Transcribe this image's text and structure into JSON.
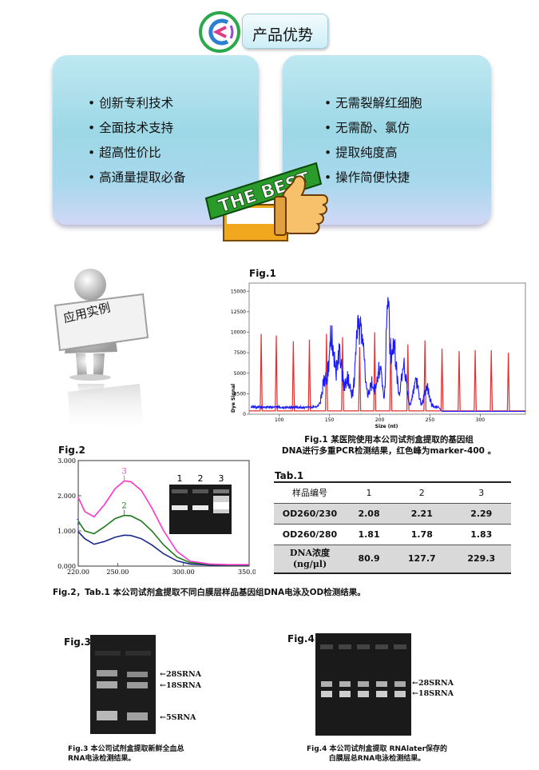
{
  "header": {
    "title": "产品优势"
  },
  "advantages": {
    "left": [
      "• 创新专利技术",
      "• 全面技术支持",
      "• 超高性价比",
      "• 高通量提取必备"
    ],
    "right": [
      "• 无需裂解红细胞",
      "• 无需酚、氯仿",
      "• 提取纯度高",
      "• 操作简便快捷"
    ]
  },
  "badge_text": "THE BEST",
  "section_sign": "应用实例",
  "fig1": {
    "title": "Fig.1",
    "caption_line1": "Fig.1 某医院使用本公司试剂盒提取的基因组",
    "caption_line2": "DNA进行多重PCR检测结果，红色峰为marker-400 。",
    "ylabel": "Dye Signal",
    "xlabel": "Size (nt)",
    "colors": {
      "sample": "#1a1aff",
      "marker": "#e03030"
    }
  },
  "chart_data": [
    {
      "type": "line",
      "title": "Fig.1",
      "xlabel": "Size (nt)",
      "ylabel": "Dye Signal",
      "xlim": [
        70,
        345
      ],
      "ylim": [
        0,
        16000
      ],
      "xticks": [
        100,
        150,
        200,
        250,
        300
      ],
      "yticks": [
        0,
        2500,
        5000,
        7500,
        10000,
        12500,
        15000
      ],
      "marker_peaks": [
        {
          "x": 82,
          "y": 9800
        },
        {
          "x": 97,
          "y": 9600
        },
        {
          "x": 114,
          "y": 8900
        },
        {
          "x": 130,
          "y": 9100
        },
        {
          "x": 147,
          "y": 9800
        },
        {
          "x": 163,
          "y": 9400
        },
        {
          "x": 180,
          "y": 8200
        },
        {
          "x": 195,
          "y": 10000
        },
        {
          "x": 211,
          "y": 9300
        },
        {
          "x": 228,
          "y": 8500
        },
        {
          "x": 245,
          "y": 9000
        },
        {
          "x": 262,
          "y": 8000
        },
        {
          "x": 279,
          "y": 7700
        },
        {
          "x": 295,
          "y": 7800
        },
        {
          "x": 311,
          "y": 7800
        },
        {
          "x": 328,
          "y": 7500
        }
      ],
      "sample_peaks": [
        {
          "x": 145,
          "y": 3400
        },
        {
          "x": 152,
          "y": 9100
        },
        {
          "x": 160,
          "y": 6900
        },
        {
          "x": 168,
          "y": 4000
        },
        {
          "x": 178,
          "y": 8700
        },
        {
          "x": 183,
          "y": 7300
        },
        {
          "x": 192,
          "y": 3200
        },
        {
          "x": 200,
          "y": 5200
        },
        {
          "x": 208,
          "y": 15300
        },
        {
          "x": 214,
          "y": 8600
        },
        {
          "x": 224,
          "y": 5800
        },
        {
          "x": 236,
          "y": 3600
        },
        {
          "x": 247,
          "y": 2800
        }
      ]
    },
    {
      "type": "line",
      "title": "Fig.2",
      "xlim": [
        220,
        350
      ],
      "ylim": [
        0,
        3
      ],
      "xticks": [
        220,
        250,
        300,
        350
      ],
      "xticklabels": [
        "220.00",
        "250.00",
        "300.00",
        "350.00"
      ],
      "yticks": [
        0,
        1,
        2,
        3
      ],
      "yticklabels": [
        "0.000",
        "1.000",
        "2.000",
        "3.000"
      ],
      "series": [
        {
          "name": "1",
          "color": "#1a2a8a",
          "x": [
            220,
            225,
            232,
            240,
            248,
            255,
            260,
            268,
            276,
            285,
            295,
            305,
            320,
            335,
            350
          ],
          "y": [
            0.98,
            0.78,
            0.62,
            0.7,
            0.82,
            0.88,
            0.87,
            0.78,
            0.6,
            0.35,
            0.15,
            0.06,
            0.03,
            0.02,
            0.02
          ]
        },
        {
          "name": "2",
          "color": "#1a7a1a",
          "x": [
            220,
            225,
            232,
            240,
            248,
            255,
            260,
            268,
            276,
            285,
            295,
            305,
            320,
            335,
            350
          ],
          "y": [
            1.28,
            1.0,
            0.92,
            1.12,
            1.35,
            1.44,
            1.43,
            1.28,
            1.0,
            0.6,
            0.26,
            0.1,
            0.05,
            0.03,
            0.03
          ]
        },
        {
          "name": "3",
          "color": "#ff33cc",
          "x": [
            220,
            225,
            232,
            240,
            248,
            255,
            260,
            268,
            276,
            285,
            295,
            305,
            320,
            335,
            350
          ],
          "y": [
            1.95,
            1.55,
            1.4,
            1.75,
            2.2,
            2.42,
            2.4,
            2.15,
            1.65,
            1.0,
            0.42,
            0.14,
            0.06,
            0.04,
            0.04
          ]
        }
      ]
    },
    {
      "type": "table",
      "title": "Tab.1",
      "header": [
        "样品编号",
        "1",
        "2",
        "3"
      ],
      "rows": [
        [
          "OD260/230",
          "2.08",
          "2.21",
          "2.29"
        ],
        [
          "OD260/280",
          "1.81",
          "1.78",
          "1.83"
        ],
        [
          "DNA浓度 (ng/μl)",
          "80.9",
          "127.7",
          "229.3"
        ]
      ]
    }
  ],
  "fig2": {
    "title": "Fig.2",
    "gel_lanes": [
      "1",
      "2",
      "3"
    ],
    "series_labels": [
      "1",
      "2",
      "3"
    ],
    "caption": "Fig.2，Tab.1  本公司试剂盒提取不同白膜层样品基因组DNA电泳及OD检测结果。"
  },
  "tab1": {
    "title": "Tab.1",
    "header": {
      "label": "样品编号",
      "c1": "1",
      "c2": "2",
      "c3": "3"
    },
    "row1": {
      "label": "OD260/230",
      "c1": "2.08",
      "c2": "2.21",
      "c3": "2.29"
    },
    "row2": {
      "label": "OD260/280",
      "c1": "1.81",
      "c2": "1.78",
      "c3": "1.83"
    },
    "row3": {
      "label_line1": "DNA浓度",
      "label_line2": "(ng/μl)",
      "c1": "80.9",
      "c2": "127.7",
      "c3": "229.3"
    }
  },
  "fig3": {
    "title": "Fig.3",
    "bands": [
      "28SRNA",
      "18SRNA",
      "5SRNA"
    ],
    "caption_line1": "Fig.3 本公司试剂盒提取新鲜全血总",
    "caption_line2": "RNA电泳检测结果。"
  },
  "fig4": {
    "title": "Fig.4",
    "bands": [
      "28SRNA",
      "18SRNA"
    ],
    "caption_line1": "Fig.4 本公司试剂盒提取 RNAlater保存的",
    "caption_line2": "白膜层总RNA电泳检测结果。"
  }
}
